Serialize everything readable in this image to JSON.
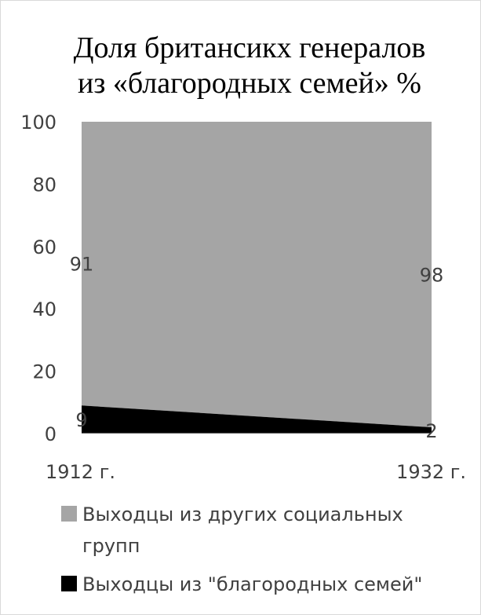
{
  "chart_data": {
    "type": "area",
    "stacked": true,
    "title_lines": [
      "Доля британсикх генералов",
      "из «благородных семей» %"
    ],
    "categories": [
      "1912 г.",
      "1932 г."
    ],
    "series": [
      {
        "name": "Выходцы из \"благородных семей\"",
        "values": [
          9,
          2
        ],
        "color": "#000000"
      },
      {
        "name": "Выходцы из других социальных групп",
        "values": [
          91,
          98
        ],
        "color": "#a5a5a5"
      }
    ],
    "ylim": [
      0,
      100
    ],
    "yticks": [
      0,
      20,
      40,
      60,
      80,
      100
    ],
    "grid": false,
    "legend_position": "bottom",
    "legend": {
      "entries": [
        {
          "lines": [
            "Выходцы из других социальных",
            "групп"
          ],
          "color": "#a5a5a5"
        },
        {
          "lines": [
            "Выходцы из \"благородных семей\""
          ],
          "color": "#000000"
        }
      ]
    }
  }
}
